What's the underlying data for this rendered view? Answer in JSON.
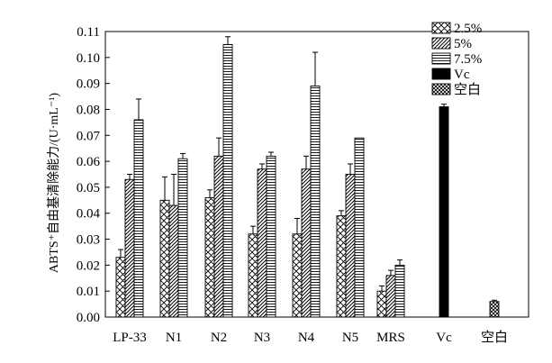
{
  "chart_data": {
    "type": "bar",
    "ylabel": "ABTS⁺自由基清除能力/(U·mL⁻¹)",
    "ylim": [
      0,
      0.11
    ],
    "yticks": [
      "0.00",
      "0.01",
      "0.02",
      "0.03",
      "0.04",
      "0.05",
      "0.06",
      "0.07",
      "0.08",
      "0.09",
      "0.10",
      "0.11"
    ],
    "categories": [
      "LP-33",
      "N1",
      "N2",
      "N3",
      "N4",
      "N5",
      "MRS",
      "Vc",
      "空白"
    ],
    "series": [
      {
        "name": "2.5%",
        "pattern": "crosshatch",
        "values": [
          0.023,
          0.045,
          0.046,
          0.032,
          0.032,
          0.039,
          0.01,
          null,
          null
        ],
        "errors": [
          0.003,
          0.009,
          0.003,
          0.003,
          0.006,
          0.002,
          0.002,
          null,
          null
        ]
      },
      {
        "name": "5%",
        "pattern": "diagonal",
        "values": [
          0.053,
          0.043,
          0.062,
          0.057,
          0.057,
          0.055,
          0.016,
          null,
          null
        ],
        "errors": [
          0.002,
          0.012,
          0.007,
          0.002,
          0.005,
          0.004,
          0.002,
          null,
          null
        ]
      },
      {
        "name": "7.5%",
        "pattern": "horizontal",
        "values": [
          0.076,
          0.061,
          0.105,
          0.062,
          0.089,
          0.069,
          0.02,
          null,
          null
        ],
        "errors": [
          0.008,
          0.002,
          0.003,
          0.0015,
          0.013,
          0.0,
          0.002,
          null,
          null
        ]
      },
      {
        "name": "Vc",
        "pattern": "solid",
        "values": [
          null,
          null,
          null,
          null,
          null,
          null,
          null,
          0.081,
          null
        ],
        "errors": [
          null,
          null,
          null,
          null,
          null,
          null,
          null,
          0.001,
          null
        ]
      },
      {
        "name": "空白",
        "pattern": "dense-crosshatch",
        "values": [
          null,
          null,
          null,
          null,
          null,
          null,
          null,
          null,
          0.006
        ],
        "errors": [
          null,
          null,
          null,
          null,
          null,
          null,
          null,
          null,
          0.0005
        ]
      }
    ],
    "legend_position": "top-right",
    "grid": false
  }
}
